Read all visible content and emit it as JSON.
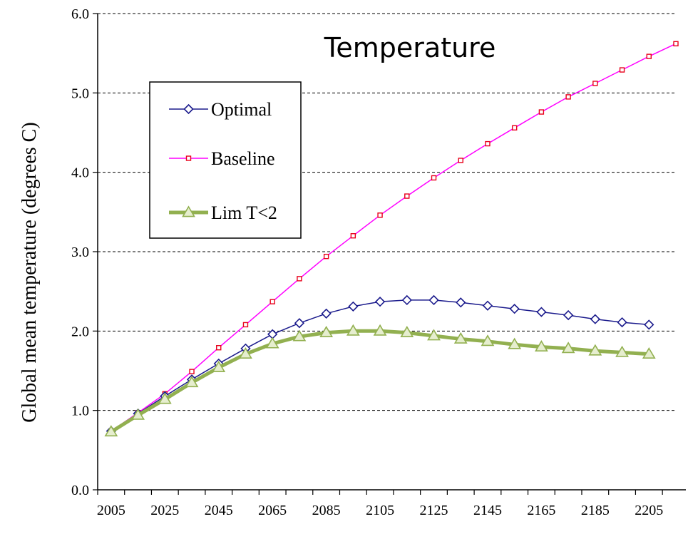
{
  "chart_data": {
    "type": "line",
    "title": "Temperature",
    "xlabel": "",
    "ylabel": "Global mean temperature (degrees C)",
    "xlim": [
      2000,
      2215
    ],
    "ylim": [
      0,
      6
    ],
    "grid": "horizontal dashed",
    "legend_position": "top-left",
    "x_ticks": [
      "2005",
      "2025",
      "2045",
      "2065",
      "2085",
      "2105",
      "2125",
      "2145",
      "2165",
      "2185",
      "2205"
    ],
    "y_ticks": [
      "0.0",
      "1.0",
      "2.0",
      "3.0",
      "4.0",
      "5.0",
      "6.0"
    ],
    "series": [
      {
        "name": "Optimal",
        "color": "#1a1a8c",
        "marker": "diamond",
        "x": [
          2005,
          2015,
          2025,
          2035,
          2045,
          2055,
          2065,
          2075,
          2085,
          2095,
          2105,
          2115,
          2125,
          2135,
          2145,
          2155,
          2165,
          2175,
          2185,
          2195,
          2205
        ],
        "values": [
          0.74,
          0.96,
          1.18,
          1.39,
          1.59,
          1.78,
          1.96,
          2.1,
          2.22,
          2.31,
          2.37,
          2.39,
          2.39,
          2.36,
          2.32,
          2.28,
          2.24,
          2.2,
          2.15,
          2.11,
          2.08
        ]
      },
      {
        "name": "Baseline",
        "color": "#ff00ff",
        "marker": "square",
        "x": [
          2005,
          2015,
          2025,
          2035,
          2045,
          2055,
          2065,
          2075,
          2085,
          2095,
          2105,
          2115,
          2125,
          2135,
          2145,
          2155,
          2165,
          2175,
          2185,
          2195,
          2205,
          2215
        ],
        "values": [
          0.74,
          0.97,
          1.21,
          1.49,
          1.79,
          2.08,
          2.37,
          2.66,
          2.94,
          3.2,
          3.46,
          3.7,
          3.93,
          4.15,
          4.36,
          4.56,
          4.76,
          4.95,
          5.12,
          5.29,
          5.46,
          5.62
        ]
      },
      {
        "name": "Lim T<2",
        "color": "#92b050",
        "marker": "triangle",
        "x": [
          2005,
          2015,
          2025,
          2035,
          2045,
          2055,
          2065,
          2075,
          2085,
          2095,
          2105,
          2115,
          2125,
          2135,
          2145,
          2155,
          2165,
          2175,
          2185,
          2195,
          2205
        ],
        "values": [
          0.73,
          0.94,
          1.14,
          1.35,
          1.54,
          1.71,
          1.84,
          1.93,
          1.98,
          2.0,
          2.0,
          1.98,
          1.94,
          1.9,
          1.87,
          1.83,
          1.8,
          1.78,
          1.75,
          1.73,
          1.71
        ]
      }
    ]
  }
}
